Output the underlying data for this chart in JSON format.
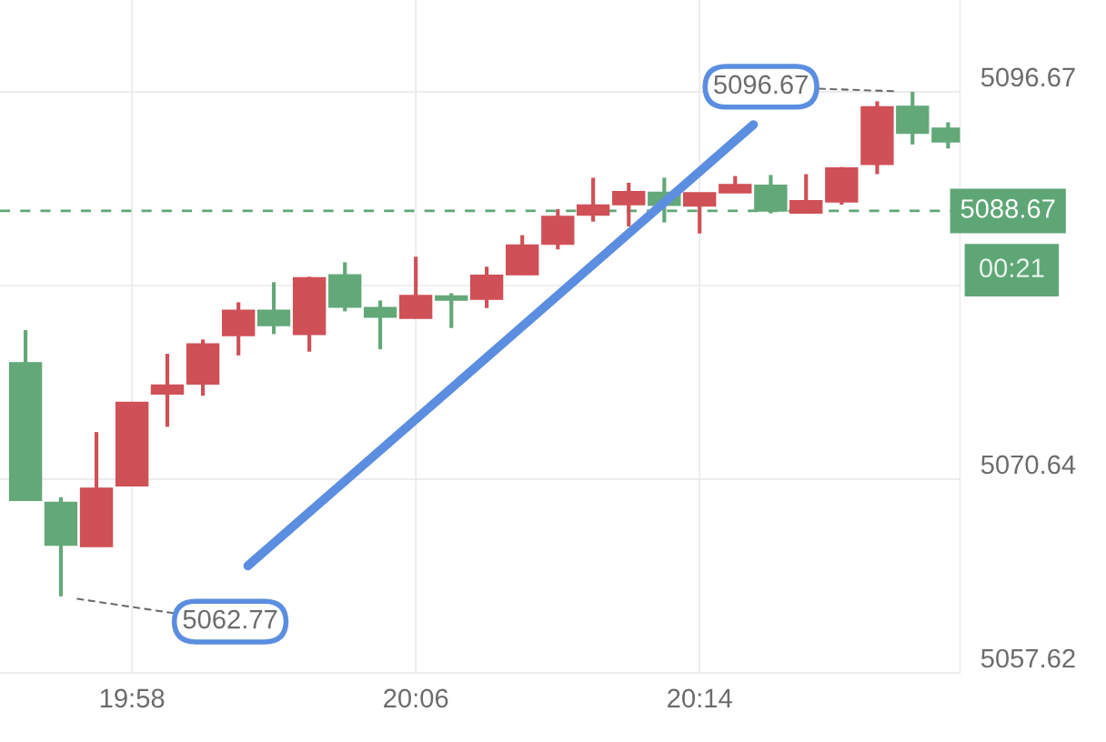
{
  "chart_data": {
    "type": "candlestick",
    "x": [
      19.9167,
      19.9333,
      19.95,
      19.9667,
      19.9833,
      20.0,
      20.0167,
      20.0333,
      20.05,
      20.0667,
      20.0833,
      20.1,
      20.1167,
      20.1333,
      20.15,
      20.1667,
      20.1833,
      20.2,
      20.2167,
      20.2333,
      20.25,
      20.2667,
      20.2833,
      20.3,
      20.3167,
      20.3333,
      20.35
    ],
    "ohlc": [
      [
        5078.47,
        5080.66,
        5069.22,
        5069.22
      ],
      [
        5069.08,
        5069.43,
        5062.77,
        5066.21
      ],
      [
        5066.11,
        5073.81,
        5066.11,
        5070.04
      ],
      [
        5070.2,
        5075.81,
        5070.2,
        5075.81
      ],
      [
        5076.36,
        5079.07,
        5074.16,
        5076.97
      ],
      [
        5077.03,
        5080.03,
        5076.25,
        5079.74
      ],
      [
        5080.29,
        5082.53,
        5078.96,
        5082.0
      ],
      [
        5082.0,
        5083.88,
        5080.39,
        5080.96
      ],
      [
        5080.37,
        5084.24,
        5079.21,
        5084.18
      ],
      [
        5084.38,
        5085.22,
        5081.92,
        5082.2
      ],
      [
        5082.17,
        5082.65,
        5079.37,
        5081.53
      ],
      [
        5081.45,
        5085.59,
        5081.45,
        5082.98
      ],
      [
        5082.96,
        5083.14,
        5080.8,
        5082.67
      ],
      [
        5082.73,
        5084.92,
        5082.14,
        5084.34
      ],
      [
        5084.38,
        5087.04,
        5084.38,
        5086.38
      ],
      [
        5086.43,
        5088.78,
        5086.08,
        5088.3
      ],
      [
        5088.39,
        5090.9,
        5087.95,
        5089.07
      ],
      [
        5089.09,
        5090.56,
        5087.62,
        5089.96
      ],
      [
        5089.92,
        5090.9,
        5087.89,
        5089.05
      ],
      [
        5089.0,
        5089.89,
        5087.15,
        5089.89
      ],
      [
        5089.89,
        5091.01,
        5089.89,
        5090.44
      ],
      [
        5090.4,
        5091.08,
        5088.5,
        5088.66
      ],
      [
        5088.52,
        5091.14,
        5088.52,
        5089.35
      ],
      [
        5089.27,
        5091.62,
        5089.09,
        5091.56
      ],
      [
        5091.8,
        5096.03,
        5091.14,
        5095.66
      ],
      [
        5095.7,
        5096.67,
        5093.13,
        5093.89
      ],
      [
        5094.23,
        5094.62,
        5092.87,
        5093.31
      ]
    ],
    "colors": [
      "#63a878",
      "#63a878",
      "#cf5057",
      "#cf5057",
      "#cf5057",
      "#cf5057",
      "#cf5057",
      "#63a878",
      "#cf5057",
      "#63a878",
      "#63a878",
      "#cf5057",
      "#63a878",
      "#cf5057",
      "#cf5057",
      "#cf5057",
      "#cf5057",
      "#cf5057",
      "#63a878",
      "#cf5057",
      "#cf5057",
      "#63a878",
      "#cf5057",
      "#cf5057",
      "#cf5057",
      "#63a878",
      "#63a878"
    ],
    "series": [
      {
        "type": "line",
        "x": [
          20.0211,
          20.2586
        ],
        "values": [
          5064.82,
          5094.47
        ],
        "color": "#5b8ee0"
      }
    ],
    "xlim": [
      19.9047,
      20.3556
    ],
    "xticks": [
      {
        "value": 19.9667,
        "label": "19:58"
      },
      {
        "value": 20.1,
        "label": "20:06"
      },
      {
        "value": 20.2333,
        "label": "20:14"
      }
    ],
    "ylim": [
      5057.62,
      5102.84
    ],
    "yticks": [
      5057.62,
      5070.64,
      {
        "value": 5083.65,
        "label": null
      },
      5096.67
    ],
    "ref_lines": [
      {
        "axis": "y",
        "value": 5088.67,
        "label": "5088.67",
        "color": "#5fa676",
        "line_style": "dashed"
      }
    ],
    "annotations": [
      "5096.67",
      "5062.77",
      "00:21"
    ],
    "grid": true
  }
}
